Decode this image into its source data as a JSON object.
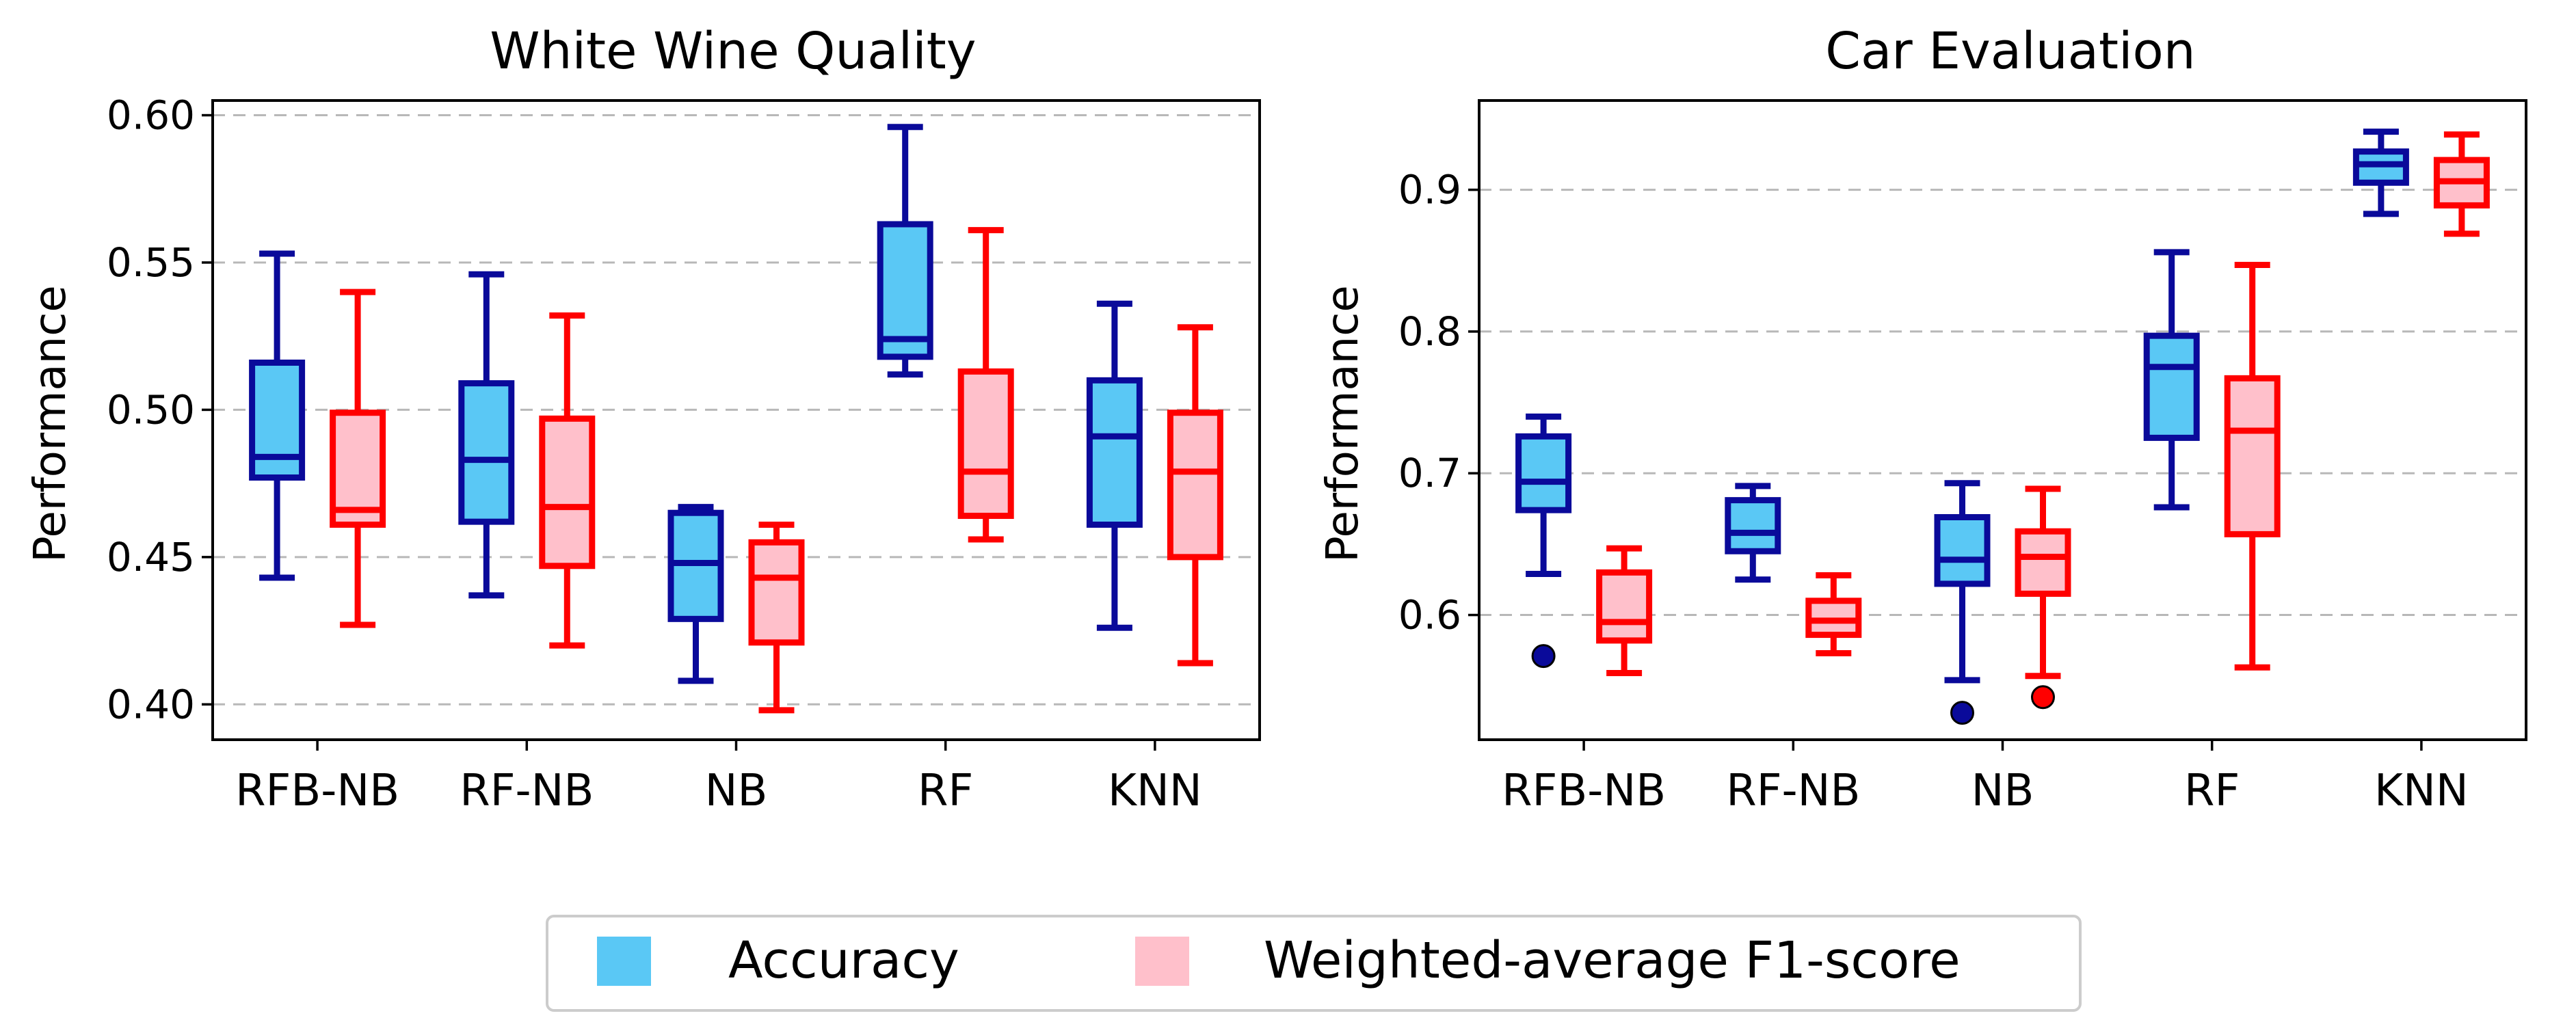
{
  "colors": {
    "accuracy_fill": "#5ac8f5",
    "accuracy_edge": "#0a0a9a",
    "f1_fill": "#ffc0cb",
    "f1_edge": "#ff0000",
    "grid": "#b8b8b8"
  },
  "legend": {
    "items": [
      {
        "label": "Accuracy"
      },
      {
        "label": "Weighted-average F1-score"
      }
    ]
  },
  "chart_data": [
    {
      "type": "box",
      "title": "White Wine Quality",
      "xlabel": "",
      "ylabel": "Performance",
      "ylim": [
        0.388,
        0.605
      ],
      "yticks": [
        "0.40",
        "0.45",
        "0.50",
        "0.55",
        "0.60"
      ],
      "grid": true,
      "categories": [
        "RFB-NB",
        "RF-NB",
        "NB",
        "RF",
        "KNN"
      ],
      "series": [
        {
          "name": "Accuracy",
          "boxes": [
            {
              "whislo": 0.443,
              "q1": 0.477,
              "med": 0.484,
              "q3": 0.516,
              "whishi": 0.553,
              "fliers": []
            },
            {
              "whislo": 0.437,
              "q1": 0.462,
              "med": 0.483,
              "q3": 0.509,
              "whishi": 0.546,
              "fliers": []
            },
            {
              "whislo": 0.408,
              "q1": 0.429,
              "med": 0.448,
              "q3": 0.465,
              "whishi": 0.467,
              "fliers": []
            },
            {
              "whislo": 0.512,
              "q1": 0.518,
              "med": 0.524,
              "q3": 0.563,
              "whishi": 0.596,
              "fliers": []
            },
            {
              "whislo": 0.426,
              "q1": 0.461,
              "med": 0.491,
              "q3": 0.51,
              "whishi": 0.536,
              "fliers": []
            }
          ]
        },
        {
          "name": "Weighted-average F1-score",
          "boxes": [
            {
              "whislo": 0.427,
              "q1": 0.461,
              "med": 0.466,
              "q3": 0.499,
              "whishi": 0.54,
              "fliers": []
            },
            {
              "whislo": 0.42,
              "q1": 0.447,
              "med": 0.467,
              "q3": 0.497,
              "whishi": 0.532,
              "fliers": []
            },
            {
              "whislo": 0.398,
              "q1": 0.421,
              "med": 0.443,
              "q3": 0.455,
              "whishi": 0.461,
              "fliers": []
            },
            {
              "whislo": 0.456,
              "q1": 0.464,
              "med": 0.479,
              "q3": 0.513,
              "whishi": 0.561,
              "fliers": []
            },
            {
              "whislo": 0.414,
              "q1": 0.45,
              "med": 0.479,
              "q3": 0.499,
              "whishi": 0.528,
              "fliers": []
            }
          ]
        }
      ]
    },
    {
      "type": "box",
      "title": "Car Evaluation",
      "xlabel": "",
      "ylabel": "Performance",
      "ylim": [
        0.512,
        0.963
      ],
      "yticks": [
        "0.6",
        "0.7",
        "0.8",
        "0.9"
      ],
      "grid": true,
      "categories": [
        "RFB-NB",
        "RF-NB",
        "NB",
        "RF",
        "KNN"
      ],
      "series": [
        {
          "name": "Accuracy",
          "boxes": [
            {
              "whislo": 0.629,
              "q1": 0.674,
              "med": 0.694,
              "q3": 0.726,
              "whishi": 0.74,
              "fliers": [
                0.571
              ]
            },
            {
              "whislo": 0.625,
              "q1": 0.645,
              "med": 0.658,
              "q3": 0.681,
              "whishi": 0.691,
              "fliers": []
            },
            {
              "whislo": 0.554,
              "q1": 0.622,
              "med": 0.639,
              "q3": 0.669,
              "whishi": 0.693,
              "fliers": [
                0.531
              ]
            },
            {
              "whislo": 0.676,
              "q1": 0.725,
              "med": 0.775,
              "q3": 0.797,
              "whishi": 0.856,
              "fliers": []
            },
            {
              "whislo": 0.883,
              "q1": 0.905,
              "med": 0.918,
              "q3": 0.927,
              "whishi": 0.941,
              "fliers": []
            }
          ]
        },
        {
          "name": "Weighted-average F1-score",
          "boxes": [
            {
              "whislo": 0.559,
              "q1": 0.582,
              "med": 0.595,
              "q3": 0.63,
              "whishi": 0.647,
              "fliers": []
            },
            {
              "whislo": 0.573,
              "q1": 0.586,
              "med": 0.596,
              "q3": 0.61,
              "whishi": 0.628,
              "fliers": []
            },
            {
              "whislo": 0.557,
              "q1": 0.615,
              "med": 0.641,
              "q3": 0.659,
              "whishi": 0.689,
              "fliers": [
                0.542
              ]
            },
            {
              "whislo": 0.563,
              "q1": 0.657,
              "med": 0.73,
              "q3": 0.767,
              "whishi": 0.847,
              "fliers": []
            },
            {
              "whislo": 0.869,
              "q1": 0.889,
              "med": 0.906,
              "q3": 0.921,
              "whishi": 0.939,
              "fliers": []
            }
          ]
        }
      ]
    }
  ]
}
